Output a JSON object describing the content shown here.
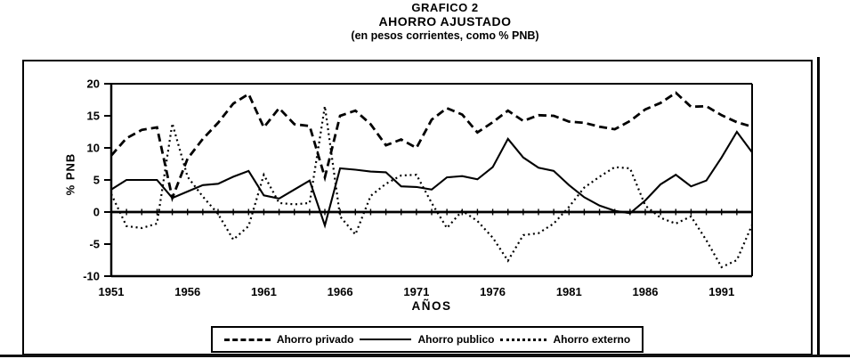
{
  "page": {
    "title_line1": "GRAFICO 2",
    "title_line2": "AHORRO AJUSTADO",
    "title_line3": "(en pesos corrientes, como % PNB)"
  },
  "chart_data": {
    "type": "line",
    "title": "GRAFICO 2",
    "subtitle": "AHORRO AJUSTADO (en pesos corrientes, como % PNB)",
    "xlabel": "AÑOS",
    "ylabel": "% PNB",
    "ylim": [
      -10,
      20
    ],
    "yticks": [
      20,
      15,
      10,
      5,
      0,
      -5,
      -10
    ],
    "xticks": [
      1951,
      1956,
      1961,
      1966,
      1971,
      1976,
      1981,
      1986,
      1991
    ],
    "grid": false,
    "legend_position": "bottom",
    "line_color": "#000000",
    "x": [
      1951,
      1952,
      1953,
      1954,
      1955,
      1956,
      1957,
      1958,
      1959,
      1960,
      1961,
      1962,
      1963,
      1964,
      1965,
      1966,
      1967,
      1968,
      1969,
      1970,
      1971,
      1972,
      1973,
      1974,
      1975,
      1976,
      1977,
      1978,
      1979,
      1980,
      1981,
      1982,
      1983,
      1984,
      1985,
      1986,
      1987,
      1988,
      1989,
      1990,
      1991,
      1992,
      1993
    ],
    "series": [
      {
        "name": "Ahorro privado",
        "style": "dashed",
        "values": [
          8.8,
          11.5,
          12.8,
          13.2,
          2.2,
          8.3,
          11.4,
          13.9,
          16.9,
          18.4,
          13.2,
          16.2,
          13.7,
          13.4,
          5.4,
          15.0,
          15.8,
          13.7,
          10.4,
          11.3,
          10.0,
          14.4,
          16.2,
          15.2,
          12.4,
          14.0,
          15.8,
          14.2,
          15.1,
          15.0,
          14.1,
          13.9,
          13.3,
          12.9,
          14.2,
          16.0,
          17.0,
          18.6,
          16.4,
          16.5,
          15.1,
          14.0,
          13.3
        ]
      },
      {
        "name": "Ahorro publico",
        "style": "solid",
        "values": [
          3.5,
          5.0,
          5.0,
          5.0,
          2.2,
          3.2,
          4.2,
          4.4,
          5.5,
          6.4,
          2.6,
          2.1,
          3.5,
          4.9,
          -2.1,
          6.8,
          6.6,
          6.3,
          6.2,
          4.0,
          3.9,
          3.5,
          5.4,
          5.6,
          5.1,
          7.0,
          11.4,
          8.5,
          6.9,
          6.4,
          4.2,
          2.3,
          1.0,
          0.2,
          -0.2,
          1.8,
          4.3,
          5.8,
          4.0,
          4.9,
          8.5,
          12.5,
          9.3
        ]
      },
      {
        "name": "Ahorro externo",
        "style": "dotted",
        "values": [
          2.8,
          -2.2,
          -2.5,
          -1.8,
          13.8,
          5.5,
          2.4,
          -0.3,
          -4.3,
          -2.2,
          5.8,
          1.4,
          1.2,
          1.4,
          16.5,
          -0.7,
          -3.5,
          2.5,
          4.4,
          5.7,
          5.8,
          1.4,
          -2.5,
          0.2,
          -1.4,
          -4.0,
          -7.6,
          -3.6,
          -3.3,
          -1.8,
          0.8,
          3.8,
          5.5,
          7.0,
          6.8,
          1.0,
          -0.9,
          -1.8,
          -0.7,
          -4.4,
          -8.6,
          -7.5,
          -2.0
        ]
      }
    ]
  }
}
